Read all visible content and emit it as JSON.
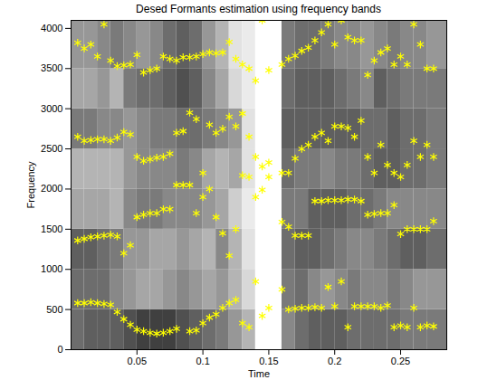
{
  "chart_data": {
    "type": "scatter",
    "title": "Desed Formants estimation using frequency bands",
    "x_label": "Time",
    "y_label": "Frequency",
    "xlim": [
      0,
      0.285
    ],
    "ylim": [
      0,
      4100
    ],
    "xticks": [
      0.05,
      0.1,
      0.15,
      0.2,
      0.25
    ],
    "yticks": [
      0,
      500,
      1000,
      1500,
      2000,
      2500,
      3000,
      3500,
      4000
    ],
    "color": "#ffff00",
    "marker": "asterisk",
    "x": [
      0.005,
      0.01,
      0.015,
      0.02,
      0.025,
      0.03,
      0.035,
      0.04,
      0.045,
      0.05,
      0.055,
      0.06,
      0.065,
      0.07,
      0.075,
      0.08,
      0.085,
      0.09,
      0.095,
      0.1,
      0.105,
      0.11,
      0.115,
      0.12,
      0.125,
      0.13,
      0.135,
      0.14,
      0.145,
      0.15,
      0.155,
      0.16,
      0.165,
      0.17,
      0.175,
      0.18,
      0.185,
      0.19,
      0.195,
      0.2,
      0.205,
      0.21,
      0.215,
      0.22,
      0.225,
      0.23,
      0.235,
      0.24,
      0.245,
      0.25,
      0.255,
      0.26,
      0.265,
      0.27,
      0.275
    ],
    "series": [
      {
        "values": [
          580,
          580,
          590,
          580,
          570,
          560,
          470,
          380,
          310,
          250,
          230,
          210,
          200,
          210,
          230,
          260,
          null,
          230,
          240,
          330,
          400,
          440,
          520,
          580,
          620,
          330,
          280,
          850,
          420,
          520,
          null,
          750,
          500,
          510,
          520,
          520,
          530,
          520,
          780,
          540,
          850,
          280,
          540,
          540,
          540,
          540,
          520,
          550,
          280,
          300,
          280,
          520,
          280,
          300,
          290
        ]
      },
      {
        "values": [
          1360,
          1380,
          1400,
          1410,
          1420,
          1430,
          1410,
          1200,
          1300,
          1650,
          1680,
          1700,
          1700,
          1750,
          1750,
          2050,
          2050,
          2050,
          1700,
          1900,
          2000,
          1650,
          1450,
          1170,
          1500,
          2170,
          2150,
          1900,
          1990,
          2150,
          null,
          1590,
          1530,
          1420,
          1420,
          1420,
          1850,
          1850,
          1860,
          1860,
          1860,
          1870,
          1870,
          1850,
          1680,
          1690,
          1700,
          1700,
          1800,
          1440,
          1500,
          1500,
          1500,
          1500,
          1600
        ]
      },
      {
        "values": [
          2650,
          2600,
          2610,
          2620,
          2620,
          2600,
          2640,
          2710,
          2680,
          2400,
          2350,
          2370,
          2390,
          2400,
          2440,
          2700,
          2720,
          2950,
          2870,
          2200,
          2800,
          2700,
          2750,
          2900,
          2780,
          2940,
          2650,
          2400,
          2280,
          2330,
          null,
          2200,
          2200,
          2380,
          2500,
          2550,
          2650,
          2700,
          2600,
          2780,
          2780,
          2760,
          2650,
          2850,
          2400,
          2200,
          2550,
          2300,
          2200,
          2150,
          2300,
          2600,
          2400,
          2550,
          2400
        ]
      },
      {
        "values": [
          3820,
          3750,
          3800,
          3650,
          4050,
          3600,
          3530,
          3540,
          3550,
          3670,
          3450,
          3480,
          3500,
          3650,
          3620,
          3600,
          3640,
          3640,
          3650,
          3680,
          3700,
          3690,
          3700,
          3830,
          3620,
          3550,
          3500,
          3350,
          4100,
          3480,
          null,
          3550,
          3620,
          3660,
          3720,
          3760,
          3850,
          3950,
          4050,
          3800,
          4100,
          3890,
          3850,
          3850,
          3420,
          3600,
          3700,
          3750,
          3550,
          3650,
          3550,
          4050,
          3800,
          3500,
          3500
        ]
      }
    ],
    "spectrogram": {
      "t_edges": [
        0,
        0.01,
        0.02,
        0.03,
        0.04,
        0.05,
        0.06,
        0.07,
        0.08,
        0.09,
        0.1,
        0.11,
        0.12,
        0.13,
        0.14,
        0.15,
        0.16,
        0.17,
        0.18,
        0.19,
        0.2,
        0.21,
        0.22,
        0.23,
        0.24,
        0.25,
        0.26,
        0.27,
        0.285
      ],
      "f_edges": [
        0,
        500,
        1000,
        1500,
        2000,
        2500,
        3000,
        3500,
        4100
      ],
      "brightness": [
        [
          0.35,
          0.3,
          0.3,
          0.3,
          0.25,
          0.2,
          0.2,
          0.2,
          0.25,
          0.3,
          0.35,
          0.4,
          0.5,
          0.6,
          1,
          1,
          0.45,
          0.35,
          0.3,
          0.3,
          0.3,
          0.35,
          0.35,
          0.35,
          0.35,
          0.4,
          0.4,
          0.4
        ],
        [
          0.35,
          0.35,
          0.35,
          0.45,
          0.5,
          0.55,
          0.55,
          0.5,
          0.45,
          0.5,
          0.55,
          0.5,
          0.6,
          0.75,
          1,
          1,
          0.4,
          0.35,
          0.45,
          0.5,
          0.45,
          0.4,
          0.45,
          0.45,
          0.4,
          0.45,
          0.5,
          0.5
        ],
        [
          0.3,
          0.3,
          0.35,
          0.4,
          0.5,
          0.5,
          0.55,
          0.55,
          0.5,
          0.55,
          0.6,
          0.45,
          0.6,
          0.8,
          1,
          1,
          0.35,
          0.3,
          0.3,
          0.35,
          0.4,
          0.45,
          0.45,
          0.4,
          0.35,
          0.3,
          0.3,
          0.35
        ],
        [
          0.55,
          0.55,
          0.55,
          0.6,
          0.45,
          0.4,
          0.4,
          0.45,
          0.45,
          0.45,
          0.5,
          0.55,
          0.7,
          0.85,
          1,
          1,
          0.4,
          0.4,
          0.3,
          0.3,
          0.3,
          0.35,
          0.35,
          0.4,
          0.45,
          0.45,
          0.45,
          0.45
        ],
        [
          0.6,
          0.6,
          0.6,
          0.6,
          0.5,
          0.45,
          0.45,
          0.45,
          0.4,
          0.45,
          0.55,
          0.6,
          0.55,
          0.8,
          1,
          1,
          0.35,
          0.4,
          0.4,
          0.45,
          0.4,
          0.4,
          0.35,
          0.3,
          0.3,
          0.35,
          0.35,
          0.4
        ],
        [
          0.4,
          0.4,
          0.45,
          0.45,
          0.5,
          0.45,
          0.4,
          0.4,
          0.35,
          0.35,
          0.4,
          0.45,
          0.5,
          0.8,
          1,
          1,
          0.3,
          0.3,
          0.3,
          0.3,
          0.3,
          0.3,
          0.35,
          0.35,
          0.3,
          0.35,
          0.35,
          0.4
        ],
        [
          0.55,
          0.55,
          0.5,
          0.6,
          0.4,
          0.35,
          0.35,
          0.3,
          0.25,
          0.3,
          0.45,
          0.55,
          0.75,
          0.85,
          1,
          1,
          0.35,
          0.3,
          0.3,
          0.3,
          0.35,
          0.4,
          0.45,
          0.3,
          0.35,
          0.4,
          0.4,
          0.4
        ],
        [
          0.5,
          0.5,
          0.45,
          0.4,
          0.45,
          0.5,
          0.45,
          0.35,
          0.3,
          0.35,
          0.5,
          0.6,
          0.8,
          0.85,
          1,
          1,
          0.4,
          0.35,
          0.35,
          0.4,
          0.45,
          0.45,
          0.5,
          0.45,
          0.4,
          0.45,
          0.45,
          0.5
        ]
      ]
    }
  }
}
